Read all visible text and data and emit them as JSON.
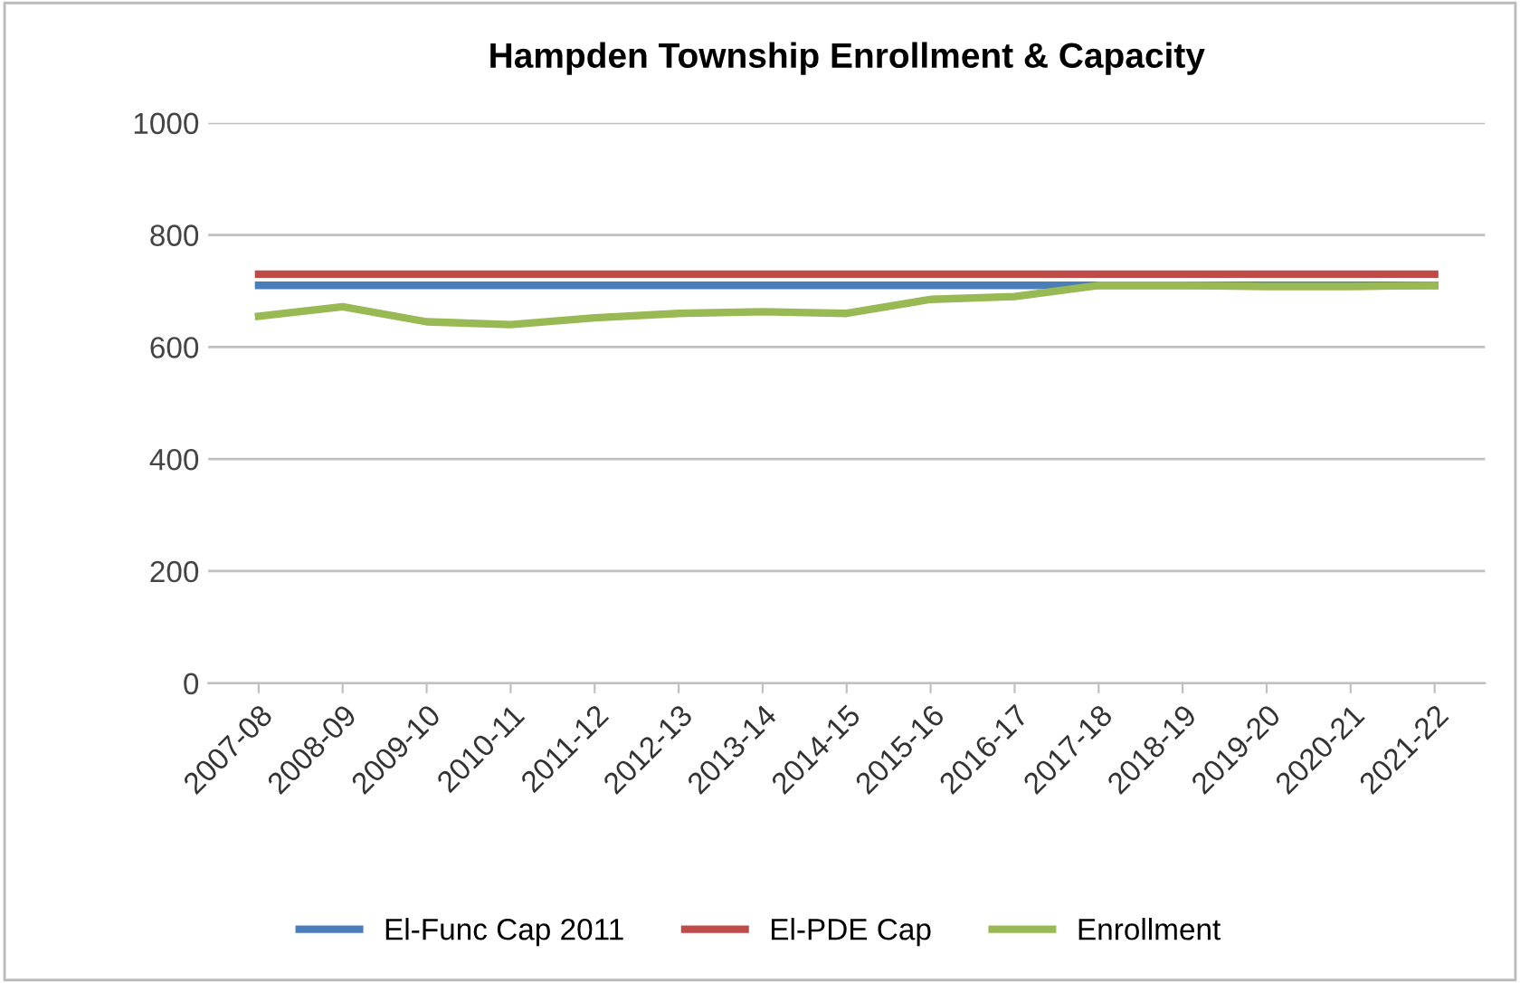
{
  "chart_data": {
    "type": "line",
    "title": "Hampden Township Enrollment & Capacity",
    "categories": [
      "2007-08",
      "2008-09",
      "2009-10",
      "2010-11",
      "2011-12",
      "2012-13",
      "2013-14",
      "2014-15",
      "2015-16",
      "2016-17",
      "2017-18",
      "2018-19",
      "2019-20",
      "2020-21",
      "2021-22"
    ],
    "series": [
      {
        "name": "El-Func Cap 2011",
        "color": "#4a7ebb",
        "values": [
          710,
          710,
          710,
          710,
          710,
          710,
          710,
          710,
          710,
          710,
          710,
          710,
          710,
          710,
          710
        ]
      },
      {
        "name": "El-PDE Cap",
        "color": "#be4b48",
        "values": [
          730,
          730,
          730,
          730,
          730,
          730,
          730,
          730,
          730,
          730,
          730,
          730,
          730,
          730,
          730
        ]
      },
      {
        "name": "Enrollment",
        "color": "#98b954",
        "values": [
          655,
          672,
          645,
          640,
          652,
          660,
          663,
          660,
          685,
          690,
          710,
          710,
          708,
          708,
          710
        ]
      }
    ],
    "ylim": [
      0,
      1000
    ],
    "yticks": [
      0,
      200,
      400,
      600,
      800,
      1000
    ],
    "grid": "y",
    "legend": "bottom",
    "marker": "none",
    "line_style": "solid"
  }
}
